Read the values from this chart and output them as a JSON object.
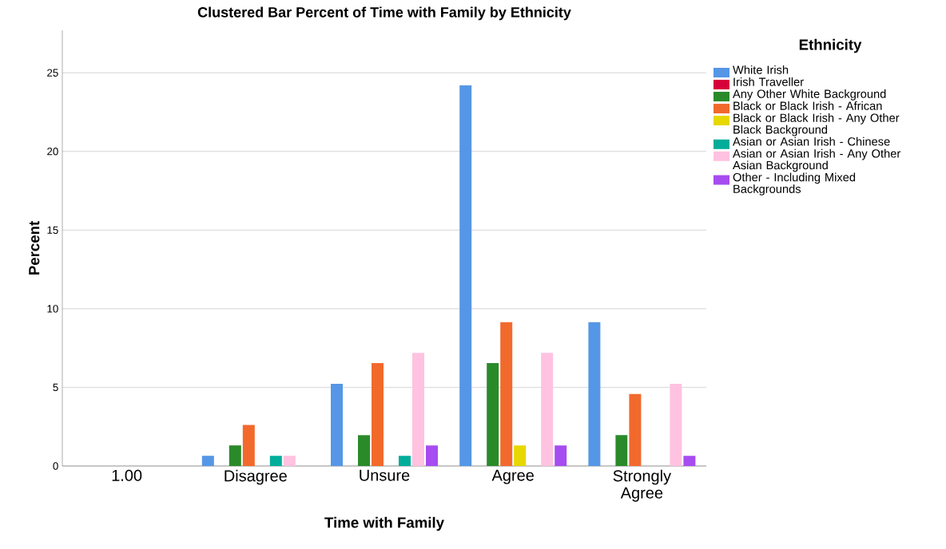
{
  "chart_data": {
    "type": "bar",
    "title": "Clustered Bar Percent of Time with Family by Ethnicity",
    "xlabel": "Time with Family",
    "ylabel": "Percent",
    "legend_title": "Ethnicity",
    "categories": [
      "1.00",
      "Disagree",
      "Unsure",
      "Agree",
      "Strongly Agree"
    ],
    "series": [
      {
        "name": "White Irish",
        "color": "#5596e6",
        "values": [
          0,
          0.65,
          5.23,
          24.2,
          9.15
        ]
      },
      {
        "name": "Irish Traveller",
        "color": "#d6003a",
        "values": [
          0,
          0,
          0,
          0,
          0
        ]
      },
      {
        "name": "Any Other White Background",
        "color": "#2a8a2a",
        "values": [
          0,
          1.31,
          1.96,
          6.54,
          1.96
        ]
      },
      {
        "name": "Black or Black Irish - African",
        "color": "#f2692c",
        "values": [
          0,
          2.61,
          6.54,
          9.15,
          4.58
        ]
      },
      {
        "name": "Black or Black Irish - Any Other Black Background",
        "color": "#e6d800",
        "values": [
          0,
          0,
          0,
          1.31,
          0
        ]
      },
      {
        "name": "Asian or Asian Irish - Chinese",
        "color": "#00ad9a",
        "values": [
          0,
          0.65,
          0.65,
          0,
          0
        ]
      },
      {
        "name": "Asian or Asian Irish - Any Other Asian Background",
        "color": "#ffc2e0",
        "values": [
          0,
          0.65,
          7.19,
          7.19,
          5.23
        ]
      },
      {
        "name": "Other - Including Mixed Backgrounds",
        "color": "#a64cf0",
        "values": [
          0,
          0,
          1.31,
          1.31,
          0.65
        ]
      }
    ],
    "ylim": [
      0,
      27.7
    ],
    "yticks": [
      0,
      5,
      10,
      15,
      20,
      25
    ],
    "grid": "y",
    "legend": "right"
  }
}
